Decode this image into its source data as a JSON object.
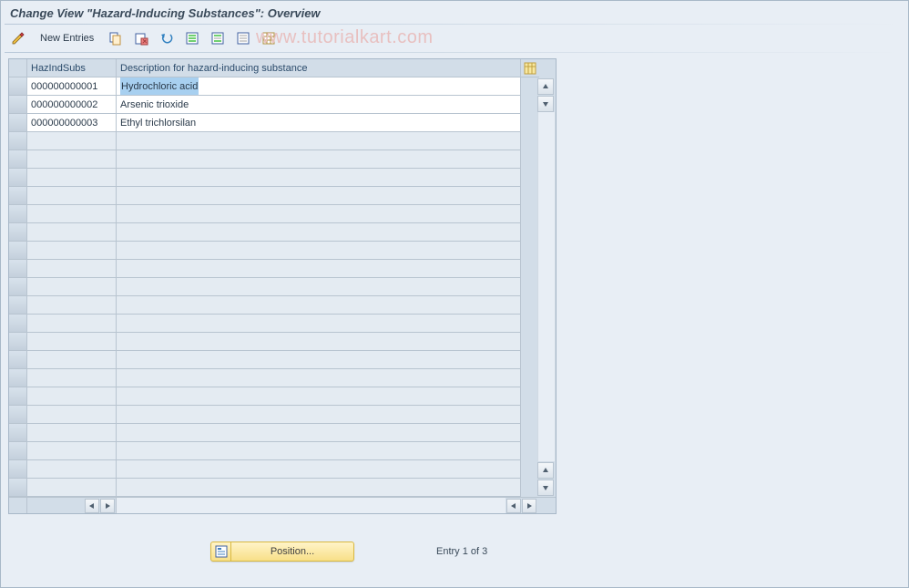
{
  "title": "Change View \"Hazard-Inducing Substances\": Overview",
  "watermark": "www.tutorialkart.com",
  "toolbar": {
    "new_entries_label": "New Entries"
  },
  "columns": {
    "id_header": "HazIndSubs",
    "desc_header": "Description for hazard-inducing substance"
  },
  "rows": [
    {
      "id": "000000000001",
      "desc": "Hydrochloric acid",
      "selected": true
    },
    {
      "id": "000000000002",
      "desc": "Arsenic trioxide",
      "selected": false
    },
    {
      "id": "000000000003",
      "desc": "Ethyl trichlorsilan",
      "selected": false
    }
  ],
  "empty_rows": 20,
  "footer": {
    "position_label": "Position...",
    "entry_status": "Entry 1 of 3"
  },
  "colors": {
    "panel_bg": "#e8eef5",
    "border": "#a8b8c8",
    "header_text": "#2a4a6a",
    "cell_bg": "#ffffff",
    "empty_cell_bg": "#e4ebf2",
    "selection_bg": "#a8d0f0",
    "watermark_color": "#e8c0c0",
    "position_btn_bg_top": "#fff4c8",
    "position_btn_bg_bottom": "#f8e088",
    "position_btn_border": "#d8b840"
  }
}
